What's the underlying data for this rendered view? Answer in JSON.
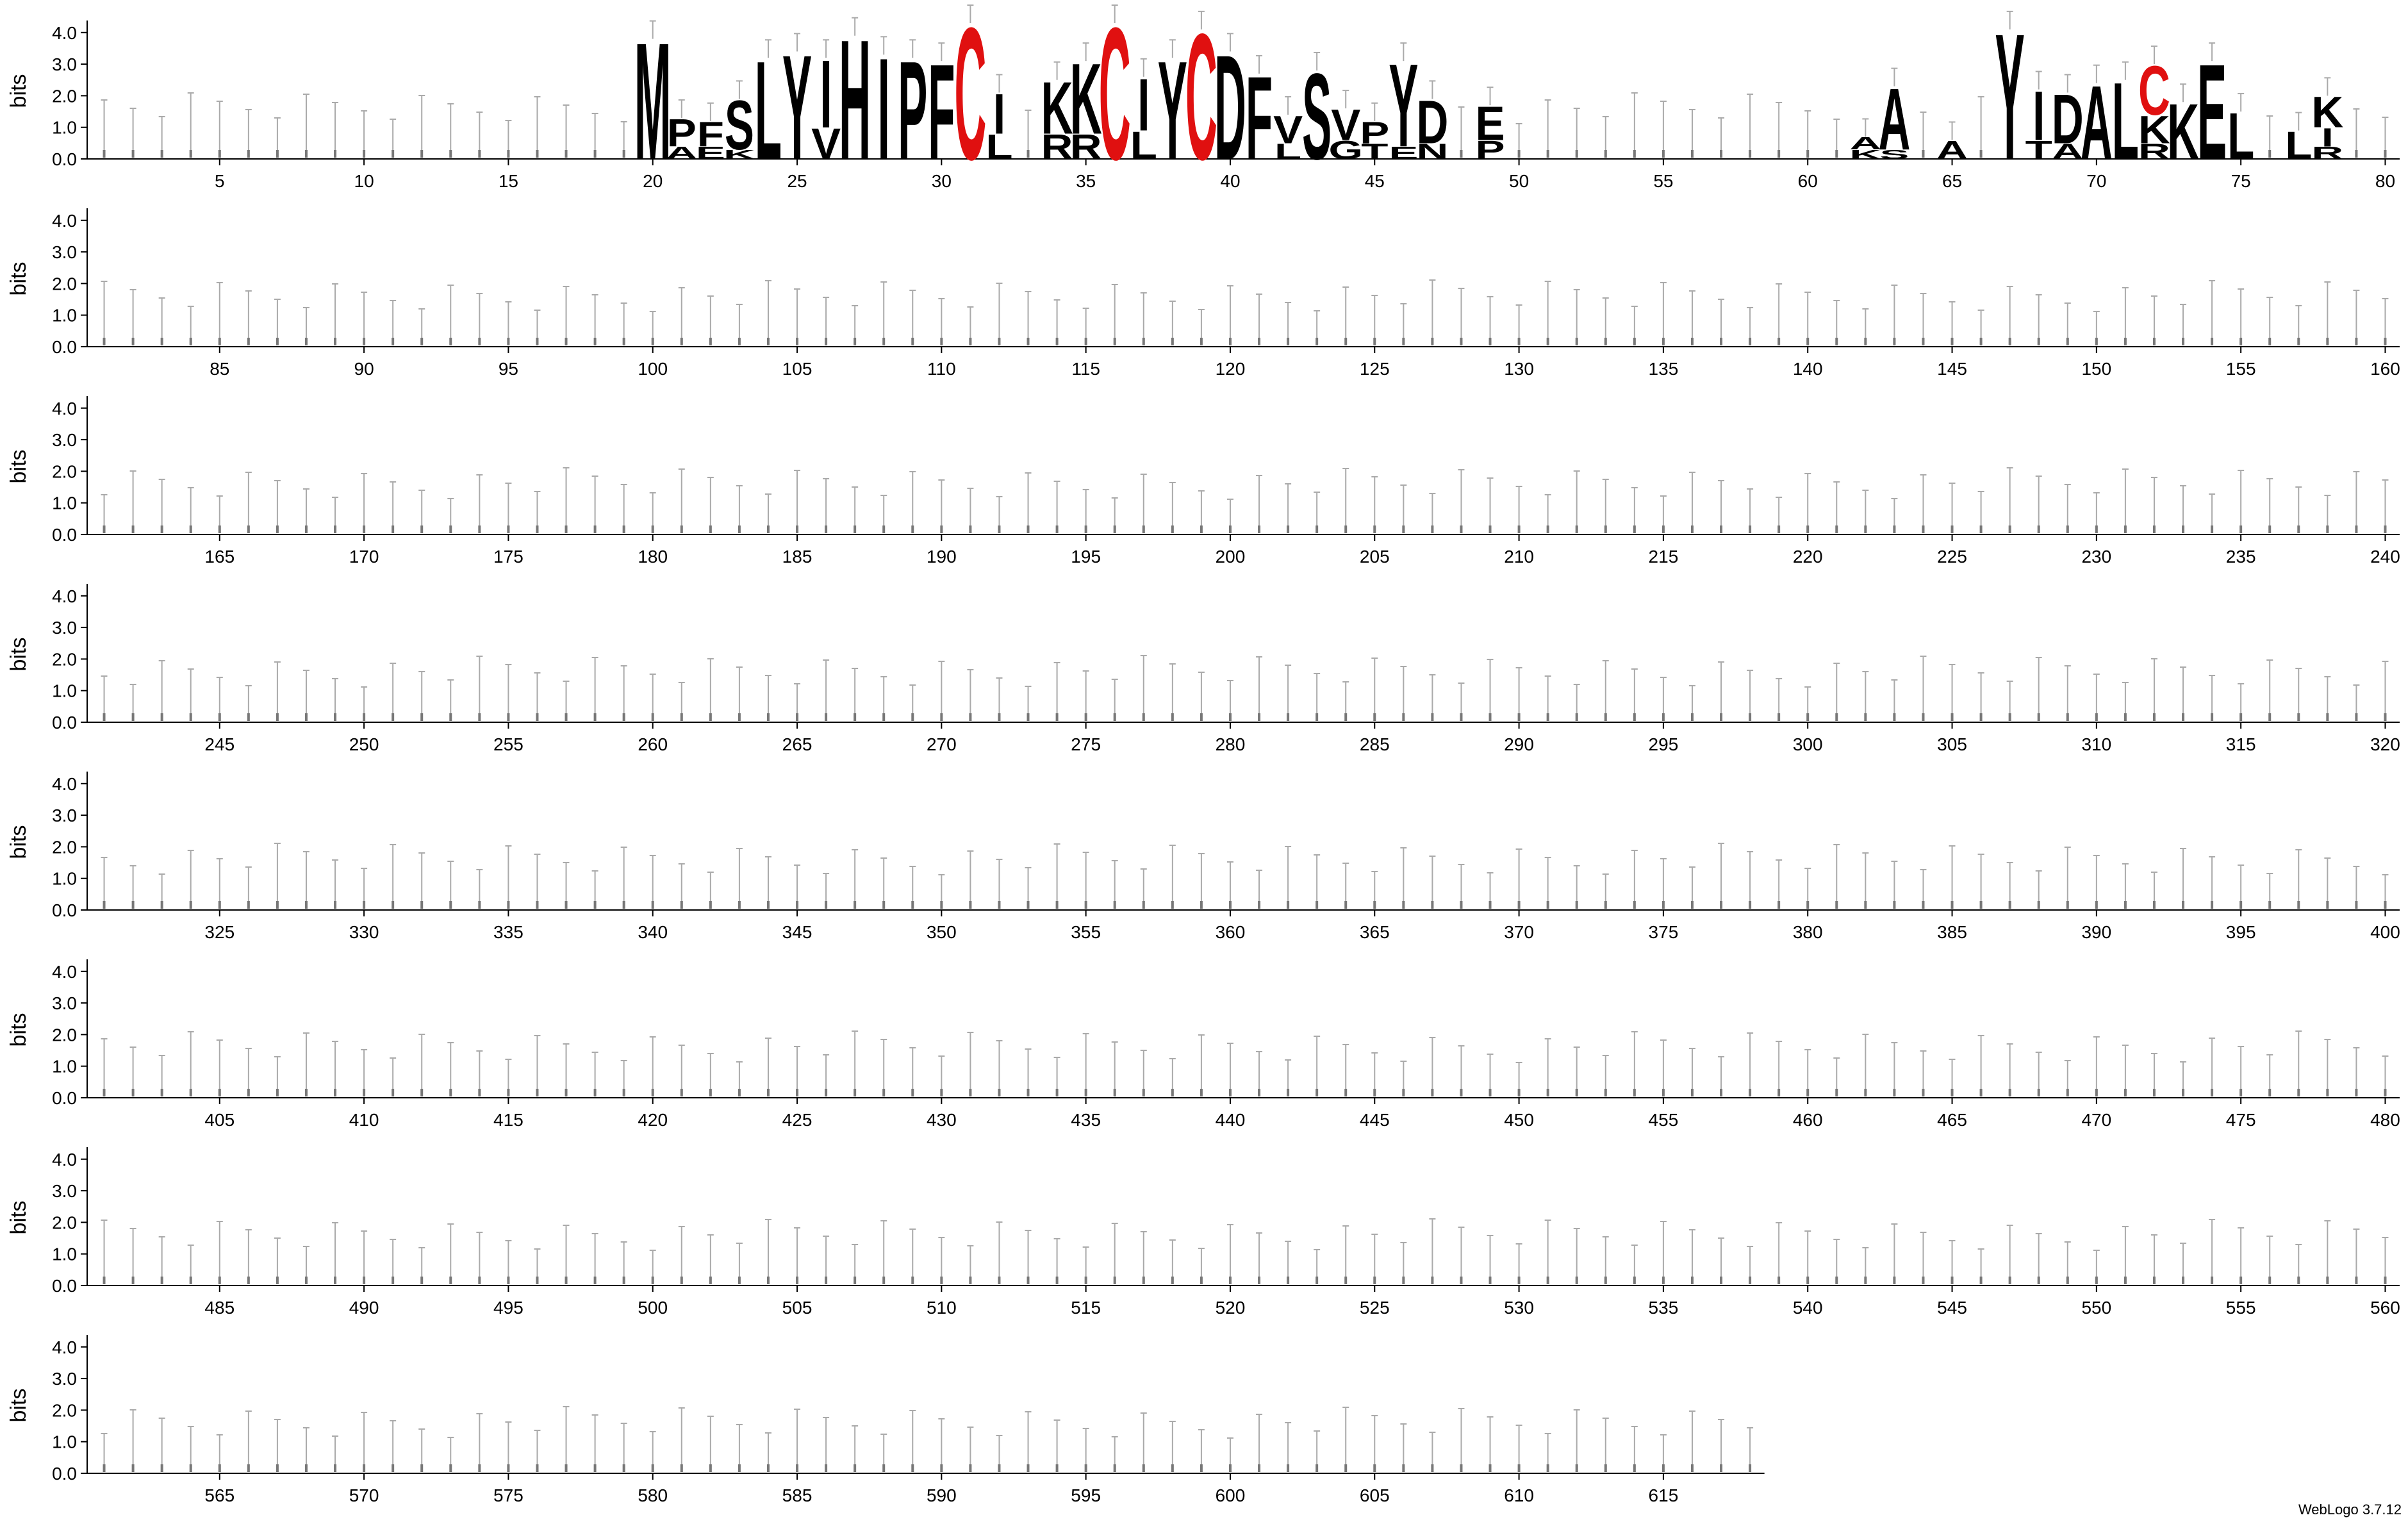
{
  "credit": "WebLogo 3.7.12",
  "colors": {
    "default": "#000000",
    "cysteine": "#e01010",
    "error_bar": "#aaaaaa",
    "axis": "#000000"
  },
  "chart_data": {
    "type": "sequence-logo",
    "ylabel": "bits",
    "ylim": [
      0,
      4.3
    ],
    "yticks": [
      "0.0",
      "1.0",
      "2.0",
      "3.0",
      "4.0"
    ],
    "positions_per_row": 80,
    "tick_step": 5,
    "rows": [
      {
        "start": 1,
        "end": 80,
        "ticks": [
          5,
          10,
          15,
          20,
          25,
          30,
          35,
          40,
          45,
          50,
          55,
          60,
          65,
          70,
          75,
          80
        ]
      },
      {
        "start": 81,
        "end": 160,
        "ticks": [
          85,
          90,
          95,
          100,
          105,
          110,
          115,
          120,
          125,
          130,
          135,
          140,
          145,
          150,
          155,
          160
        ]
      },
      {
        "start": 161,
        "end": 240,
        "ticks": [
          165,
          170,
          175,
          180,
          185,
          190,
          195,
          200,
          205,
          210,
          215,
          220,
          225,
          230,
          235,
          240
        ]
      },
      {
        "start": 241,
        "end": 320,
        "ticks": [
          245,
          250,
          255,
          260,
          265,
          270,
          275,
          280,
          285,
          290,
          295,
          300,
          305,
          310,
          315,
          320
        ]
      },
      {
        "start": 321,
        "end": 400,
        "ticks": [
          325,
          330,
          335,
          340,
          345,
          350,
          355,
          360,
          365,
          370,
          375,
          380,
          385,
          390,
          395,
          400
        ]
      },
      {
        "start": 401,
        "end": 480,
        "ticks": [
          405,
          410,
          415,
          420,
          425,
          430,
          435,
          440,
          445,
          450,
          455,
          460,
          465,
          470,
          475,
          480
        ]
      },
      {
        "start": 481,
        "end": 560,
        "ticks": [
          485,
          490,
          495,
          500,
          505,
          510,
          515,
          520,
          525,
          530,
          535,
          540,
          545,
          550,
          555,
          560
        ]
      },
      {
        "start": 561,
        "end": 618,
        "ticks": [
          565,
          570,
          575,
          580,
          585,
          590,
          595,
          600,
          605,
          610,
          615
        ]
      }
    ],
    "stacks": [
      {
        "pos": 20,
        "c": [
          [
            "M",
            3.8
          ]
        ]
      },
      {
        "pos": 21,
        "c": [
          [
            "P",
            0.9
          ],
          [
            "A",
            0.4
          ]
        ]
      },
      {
        "pos": 22,
        "c": [
          [
            "F",
            0.8
          ],
          [
            "E",
            0.4
          ]
        ]
      },
      {
        "pos": 23,
        "c": [
          [
            "S",
            1.6
          ],
          [
            "K",
            0.3
          ]
        ]
      },
      {
        "pos": 24,
        "c": [
          [
            "L",
            3.2
          ]
        ]
      },
      {
        "pos": 25,
        "c": [
          [
            "Y",
            3.4
          ]
        ]
      },
      {
        "pos": 26,
        "c": [
          [
            "I",
            2.2
          ],
          [
            "V",
            1.0
          ]
        ]
      },
      {
        "pos": 27,
        "c": [
          [
            "H",
            3.9
          ]
        ]
      },
      {
        "pos": 28,
        "c": [
          [
            "I",
            3.3
          ]
        ]
      },
      {
        "pos": 29,
        "c": [
          [
            "P",
            3.2
          ]
        ]
      },
      {
        "pos": 30,
        "c": [
          [
            "F",
            3.1
          ]
        ]
      },
      {
        "pos": 31,
        "c": [
          [
            "C",
            4.3
          ]
        ]
      },
      {
        "pos": 32,
        "c": [
          [
            "I",
            1.3
          ],
          [
            "L",
            0.8
          ]
        ]
      },
      {
        "pos": 34,
        "c": [
          [
            "K",
            1.7
          ],
          [
            "R",
            0.8
          ]
        ]
      },
      {
        "pos": 35,
        "c": [
          [
            "K",
            2.3
          ],
          [
            "R",
            0.8
          ]
        ]
      },
      {
        "pos": 36,
        "c": [
          [
            "C",
            4.3
          ]
        ]
      },
      {
        "pos": 37,
        "c": [
          [
            "I",
            1.7
          ],
          [
            "L",
            0.9
          ]
        ]
      },
      {
        "pos": 38,
        "c": [
          [
            "Y",
            3.2
          ]
        ]
      },
      {
        "pos": 39,
        "c": [
          [
            "C",
            4.1
          ]
        ]
      },
      {
        "pos": 40,
        "c": [
          [
            "D",
            3.4
          ]
        ]
      },
      {
        "pos": 41,
        "c": [
          [
            "F",
            2.7
          ]
        ]
      },
      {
        "pos": 42,
        "c": [
          [
            "V",
            0.9
          ],
          [
            "L",
            0.5
          ]
        ]
      },
      {
        "pos": 43,
        "c": [
          [
            "S",
            2.8
          ]
        ]
      },
      {
        "pos": 44,
        "c": [
          [
            "V",
            1.0
          ],
          [
            "G",
            0.6
          ]
        ]
      },
      {
        "pos": 45,
        "c": [
          [
            "P",
            0.7
          ],
          [
            "T",
            0.5
          ]
        ]
      },
      {
        "pos": 46,
        "c": [
          [
            "Y",
            2.7
          ],
          [
            "E",
            0.4
          ]
        ]
      },
      {
        "pos": 47,
        "c": [
          [
            "D",
            1.4
          ],
          [
            "N",
            0.5
          ]
        ]
      },
      {
        "pos": 49,
        "c": [
          [
            "E",
            1.1
          ],
          [
            "P",
            0.6
          ]
        ]
      },
      {
        "pos": 62,
        "c": [
          [
            "A",
            0.4
          ],
          [
            "K",
            0.3
          ]
        ]
      },
      {
        "pos": 63,
        "c": [
          [
            "A",
            2.0
          ],
          [
            "S",
            0.3
          ]
        ]
      },
      {
        "pos": 65,
        "c": [
          [
            "A",
            0.6
          ]
        ]
      },
      {
        "pos": 67,
        "c": [
          [
            "Y",
            4.1
          ]
        ]
      },
      {
        "pos": 68,
        "c": [
          [
            "I",
            1.6
          ],
          [
            "T",
            0.6
          ]
        ]
      },
      {
        "pos": 69,
        "c": [
          [
            "D",
            1.6
          ],
          [
            "A",
            0.5
          ]
        ]
      },
      {
        "pos": 70,
        "c": [
          [
            "A",
            2.4
          ]
        ]
      },
      {
        "pos": 71,
        "c": [
          [
            "L",
            2.5
          ]
        ]
      },
      {
        "pos": 72,
        "c": [
          [
            "C",
            1.6
          ],
          [
            "K",
            0.9
          ],
          [
            "R",
            0.5
          ]
        ]
      },
      {
        "pos": 73,
        "c": [
          [
            "K",
            1.8
          ]
        ]
      },
      {
        "pos": 74,
        "c": [
          [
            "E",
            3.1
          ]
        ]
      },
      {
        "pos": 75,
        "c": [
          [
            "L",
            1.5
          ]
        ]
      },
      {
        "pos": 77,
        "c": [
          [
            "L",
            0.9
          ]
        ]
      },
      {
        "pos": 78,
        "c": [
          [
            "K",
            1.0
          ],
          [
            "I",
            0.6
          ],
          [
            "R",
            0.4
          ]
        ]
      }
    ]
  }
}
